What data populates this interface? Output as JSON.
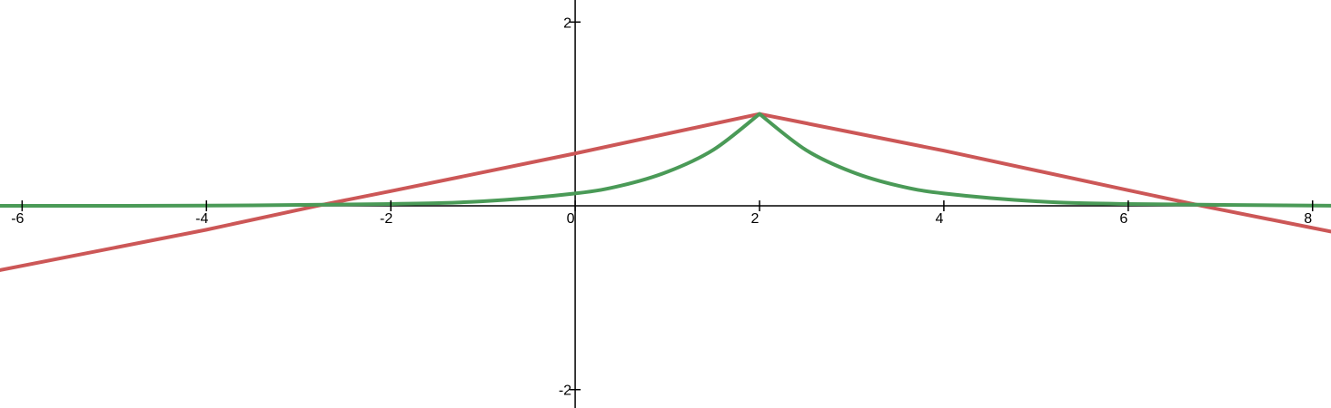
{
  "chart_data": {
    "type": "line",
    "title": "",
    "xlabel": "",
    "ylabel": "",
    "xlim": [
      -6.24,
      8.2
    ],
    "ylim": [
      -2.2,
      2.24
    ],
    "x_ticks": [
      {
        "value": -6,
        "label": "-6"
      },
      {
        "value": -4,
        "label": "-4"
      },
      {
        "value": -2,
        "label": "-2"
      },
      {
        "value": 0,
        "label": "0"
      },
      {
        "value": 2,
        "label": "2"
      },
      {
        "value": 4,
        "label": "4"
      },
      {
        "value": 6,
        "label": "6"
      },
      {
        "value": 8,
        "label": "8"
      }
    ],
    "y_ticks": [
      {
        "value": 2,
        "label": "2"
      },
      {
        "value": -2,
        "label": "-2"
      }
    ],
    "grid": false,
    "legend": "none",
    "series": [
      {
        "color": "#cc5757",
        "x": [
          -6.24,
          -4,
          -2.8,
          -2,
          0,
          2,
          4,
          6,
          6.8,
          8.2
        ],
        "y": [
          -0.7,
          -0.26,
          0,
          0.16,
          0.57,
          1,
          0.6,
          0.17,
          0,
          -0.28
        ]
      },
      {
        "color": "#4a9a57",
        "x": [
          -6.24,
          -4,
          -2,
          -1,
          0,
          0.5,
          1,
          1.5,
          2,
          2.5,
          3,
          3.5,
          4,
          5,
          6,
          8.2
        ],
        "y": [
          0,
          0.003,
          0.02,
          0.05,
          0.135,
          0.22,
          0.37,
          0.61,
          1,
          0.61,
          0.37,
          0.22,
          0.135,
          0.05,
          0.02,
          0.002
        ]
      }
    ]
  }
}
